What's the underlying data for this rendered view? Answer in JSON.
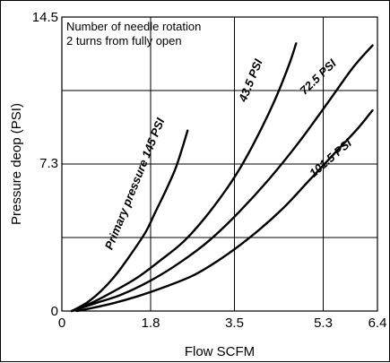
{
  "chart_data": {
    "type": "line",
    "xlabel": "Flow SCFM",
    "ylabel": "Pressure deop (PSI)",
    "xlim": [
      0,
      6.4
    ],
    "ylim": [
      0,
      14.5
    ],
    "x_ticks": [
      0,
      1.8,
      3.5,
      5.3,
      6.4
    ],
    "x_tick_labels": [
      "0",
      "1.8",
      "3.5",
      "5.3",
      "6.4"
    ],
    "y_ticks": [
      0,
      7.3,
      14.5
    ],
    "y_tick_labels": [
      "0",
      "7.3",
      "14.5"
    ],
    "grid": true,
    "annotation": {
      "line1": "Number of needle rotation",
      "line2": "2 turns from fully open"
    },
    "series": [
      {
        "name": "Primary pressure 145 PSI",
        "x": [
          0.2,
          0.5,
          0.8,
          1.1,
          1.4,
          1.7,
          1.9,
          2.1,
          2.3,
          2.45,
          2.55
        ],
        "y": [
          0.0,
          0.4,
          1.0,
          1.8,
          2.8,
          3.9,
          4.9,
          5.9,
          7.0,
          8.1,
          8.9
        ]
      },
      {
        "name": "43.5 PSI",
        "x": [
          0.2,
          0.6,
          1.0,
          1.5,
          2.0,
          2.5,
          3.0,
          3.5,
          3.9,
          4.3,
          4.6,
          4.75
        ],
        "y": [
          0.0,
          0.4,
          0.9,
          1.6,
          2.5,
          3.5,
          4.9,
          6.6,
          8.3,
          10.3,
          12.1,
          13.2
        ]
      },
      {
        "name": "72.5 PSI",
        "x": [
          0.2,
          0.7,
          1.2,
          1.8,
          2.4,
          3.0,
          3.6,
          4.2,
          4.8,
          5.4,
          5.9,
          6.3
        ],
        "y": [
          0.0,
          0.4,
          0.8,
          1.5,
          2.4,
          3.5,
          4.9,
          6.5,
          8.3,
          10.3,
          12.0,
          13.1
        ]
      },
      {
        "name": "101.5 PSI",
        "x": [
          0.3,
          0.9,
          1.5,
          2.1,
          2.7,
          3.3,
          3.9,
          4.5,
          5.0,
          5.5,
          6.0,
          6.3
        ],
        "y": [
          0.0,
          0.3,
          0.7,
          1.2,
          1.8,
          2.7,
          3.8,
          5.1,
          6.4,
          7.7,
          9.0,
          9.9
        ]
      }
    ]
  }
}
